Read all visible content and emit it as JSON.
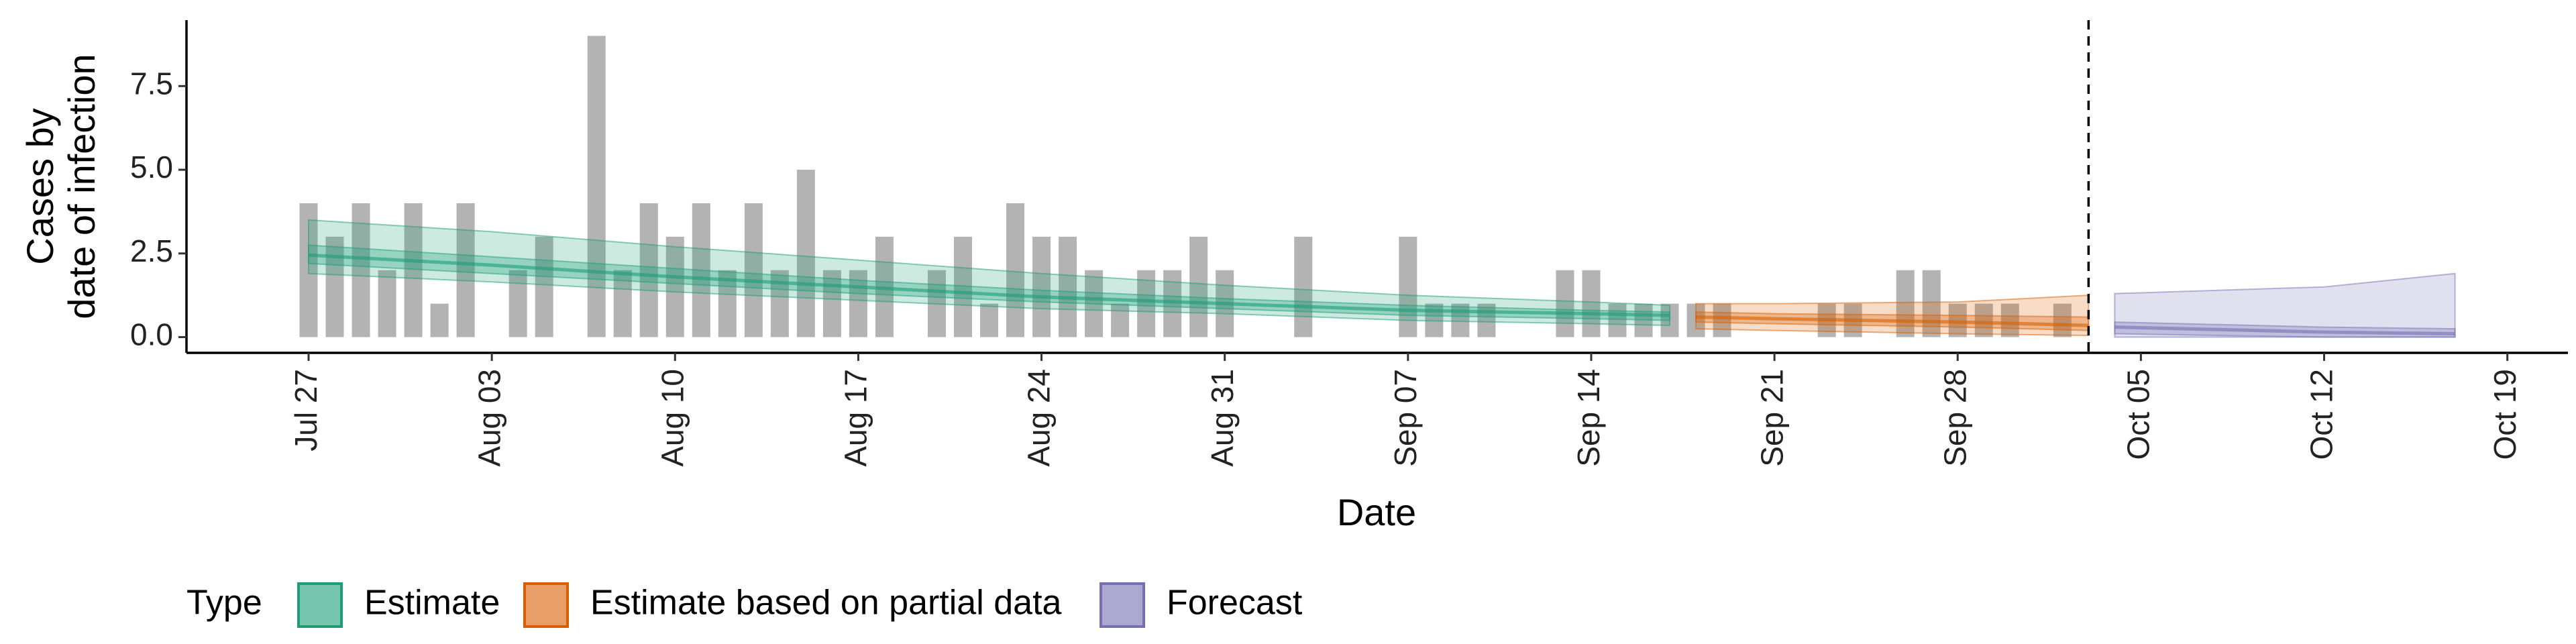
{
  "chart_data": {
    "type": "epi-estimate",
    "ylabel": [
      "Cases by",
      "date of infection"
    ],
    "xlabel": "Date",
    "legend_title": "Type",
    "categories": [
      "Jul 27",
      "Jul 28",
      "Jul 29",
      "Jul 30",
      "Jul 31",
      "Aug 01",
      "Aug 02",
      "Aug 03",
      "Aug 04",
      "Aug 05",
      "Aug 06",
      "Aug 07",
      "Aug 08",
      "Aug 09",
      "Aug 10",
      "Aug 11",
      "Aug 12",
      "Aug 13",
      "Aug 14",
      "Aug 15",
      "Aug 16",
      "Aug 17",
      "Aug 18",
      "Aug 19",
      "Aug 20",
      "Aug 21",
      "Aug 22",
      "Aug 23",
      "Aug 24",
      "Aug 25",
      "Aug 26",
      "Aug 27",
      "Aug 28",
      "Aug 29",
      "Aug 30",
      "Aug 31",
      "Sep 01",
      "Sep 02",
      "Sep 03",
      "Sep 04",
      "Sep 05",
      "Sep 06",
      "Sep 07",
      "Sep 08",
      "Sep 09",
      "Sep 10",
      "Sep 11",
      "Sep 12",
      "Sep 13",
      "Sep 14",
      "Sep 15",
      "Sep 16",
      "Sep 17",
      "Sep 18",
      "Sep 19",
      "Sep 20",
      "Sep 21",
      "Sep 22",
      "Sep 23",
      "Sep 24",
      "Sep 25",
      "Sep 26",
      "Sep 27",
      "Sep 28",
      "Sep 29",
      "Sep 30",
      "Oct 01",
      "Oct 02",
      "Oct 03",
      "Oct 04",
      "Oct 05",
      "Oct 06",
      "Oct 07",
      "Oct 08",
      "Oct 09",
      "Oct 10",
      "Oct 11",
      "Oct 12",
      "Oct 13",
      "Oct 14",
      "Oct 15",
      "Oct 16",
      "Oct 17",
      "Oct 18",
      "Oct 19"
    ],
    "bars": {
      "color": "#b3b3b3",
      "values": [
        4,
        3,
        4,
        2,
        4,
        1,
        4,
        0,
        2,
        3,
        0,
        9,
        2,
        4,
        3,
        4,
        2,
        4,
        2,
        5,
        2,
        2,
        3,
        0,
        2,
        3,
        1,
        4,
        3,
        3,
        2,
        1,
        2,
        2,
        3,
        2,
        0,
        0,
        3,
        0,
        0,
        0,
        3,
        1,
        1,
        1,
        0,
        0,
        2,
        2,
        1,
        1,
        1,
        1,
        1,
        0,
        0,
        0,
        1,
        1,
        0,
        2,
        2,
        1,
        1,
        1,
        0,
        1,
        null,
        null,
        null,
        null,
        null,
        null,
        null,
        null,
        null,
        null,
        null,
        null,
        null,
        null,
        null,
        null,
        null
      ]
    },
    "series": [
      {
        "name": "Estimate",
        "color": "#1b9e77",
        "x": [
          "Jul 27",
          "Aug 03",
          "Aug 10",
          "Aug 17",
          "Aug 24",
          "Aug 31",
          "Sep 07",
          "Sep 14",
          "Sep 17"
        ],
        "values": [
          2.45,
          2.15,
          1.8,
          1.5,
          1.2,
          1.0,
          0.8,
          0.7,
          0.65
        ],
        "upper": [
          3.5,
          3.15,
          2.7,
          2.3,
          1.9,
          1.55,
          1.25,
          1.05,
          0.95
        ],
        "lower": [
          1.9,
          1.65,
          1.35,
          1.1,
          0.85,
          0.7,
          0.5,
          0.4,
          0.35
        ],
        "upper_50": [
          2.75,
          2.4,
          2.05,
          1.7,
          1.4,
          1.15,
          0.95,
          0.8,
          0.75
        ],
        "lower_50": [
          2.2,
          1.9,
          1.6,
          1.3,
          1.05,
          0.85,
          0.65,
          0.55,
          0.5
        ]
      },
      {
        "name": "Estimate based on partial data",
        "color": "#d95f02",
        "x": [
          "Sep 18",
          "Sep 21",
          "Sep 28",
          "Oct 03"
        ],
        "values": [
          0.6,
          0.55,
          0.45,
          0.35
        ],
        "upper": [
          1.0,
          1.0,
          1.05,
          1.25
        ],
        "lower": [
          0.25,
          0.2,
          0.1,
          0.05
        ],
        "upper_50": [
          0.75,
          0.7,
          0.65,
          0.6
        ],
        "lower_50": [
          0.45,
          0.4,
          0.3,
          0.2
        ]
      },
      {
        "name": "Forecast",
        "color": "#7570b3",
        "x": [
          "Oct 04",
          "Oct 12",
          "Oct 17"
        ],
        "values": [
          0.3,
          0.15,
          0.1
        ],
        "upper": [
          1.3,
          1.5,
          1.9
        ],
        "lower": [
          0,
          0,
          0
        ],
        "upper_50": [
          0.45,
          0.3,
          0.25
        ],
        "lower_50": [
          0.1,
          0.0,
          0.0
        ]
      }
    ],
    "vline": "Oct 03",
    "ylim": [
      -0.47,
      9.47
    ],
    "yticks": [
      {
        "value": 0,
        "label": "0.0"
      },
      {
        "value": 2.5,
        "label": "2.5"
      },
      {
        "value": 5,
        "label": "5.0"
      },
      {
        "value": 7.5,
        "label": "7.5"
      }
    ],
    "xticks": [
      "Jul 27",
      "Aug 03",
      "Aug 10",
      "Aug 17",
      "Aug 24",
      "Aug 31",
      "Sep 07",
      "Sep 14",
      "Sep 21",
      "Sep 28",
      "Oct 05",
      "Oct 12",
      "Oct 19"
    ],
    "grid": false
  }
}
